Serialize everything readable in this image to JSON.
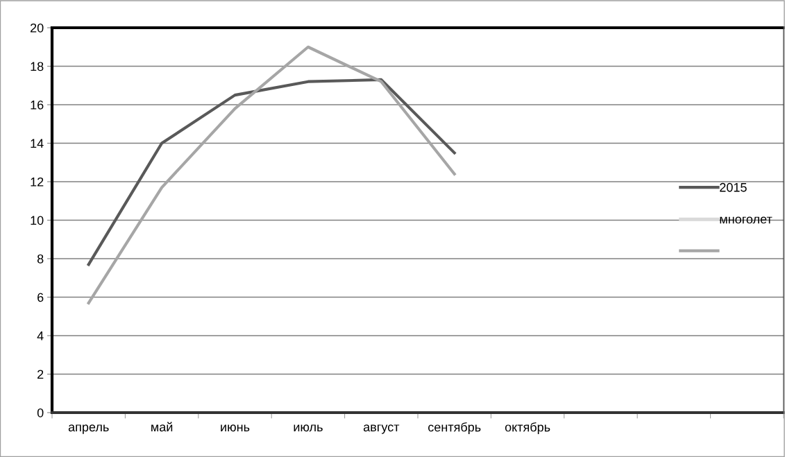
{
  "chart_data": {
    "type": "line",
    "categories": [
      "апрель",
      "май",
      "июнь",
      "июль",
      "август",
      "сентябрь",
      "октябрь",
      null,
      null,
      null
    ],
    "series": [
      {
        "name": "2015",
        "color": "#595959",
        "values": [
          7.7,
          14.0,
          16.5,
          17.2,
          17.3,
          13.5,
          null,
          null,
          null,
          null
        ]
      },
      {
        "name": "многолет",
        "color": "#d9d9d9",
        "values": [
          null,
          null,
          null,
          null,
          null,
          null,
          null,
          null,
          null,
          null
        ]
      },
      {
        "color": "#a6a6a6",
        "values": [
          5.7,
          11.7,
          15.8,
          19.0,
          17.2,
          12.4,
          null,
          null,
          null,
          null
        ]
      }
    ],
    "ylim": [
      0,
      20
    ],
    "yticks": [
      0,
      2,
      4,
      6,
      8,
      10,
      12,
      14,
      16,
      18,
      20
    ],
    "grid": "y",
    "legend": "right",
    "marker": "none",
    "line_style": "solid"
  }
}
